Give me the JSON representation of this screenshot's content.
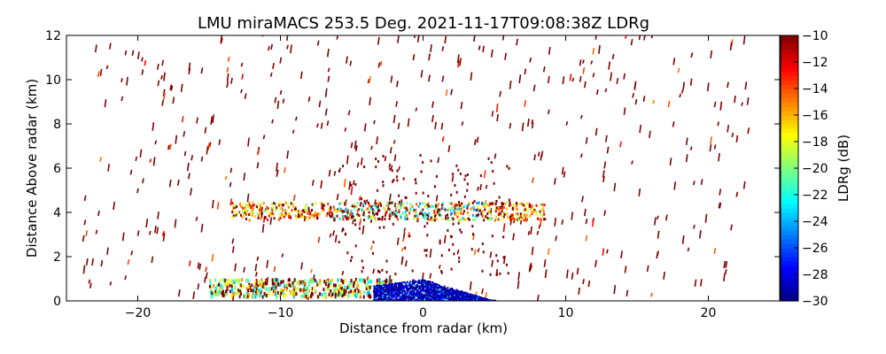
{
  "chart_data": {
    "type": "heatmap",
    "title": "LMU miraMACS 253.5 Deg. 2021-11-17T09:08:38Z  LDRg",
    "xlabel": "Distance from radar (km)",
    "ylabel": "Distance Above radar  (km)",
    "xlim": [
      -25,
      25
    ],
    "ylim": [
      0,
      12
    ],
    "xticks": [
      "−20",
      "−10",
      "0",
      "10",
      "20"
    ],
    "xtick_values": [
      -20,
      -10,
      0,
      10,
      20
    ],
    "yticks": [
      "0",
      "2",
      "4",
      "6",
      "8",
      "10",
      "12"
    ],
    "ytick_values": [
      0,
      2,
      4,
      6,
      8,
      10,
      12
    ],
    "colorbar": {
      "label": "LDRg (dB)",
      "range": [
        -30,
        -10
      ],
      "ticks": [
        "−10",
        "−12",
        "−14",
        "−16",
        "−18",
        "−20",
        "−22",
        "−24",
        "−26",
        "−28",
        "−30"
      ],
      "tick_values": [
        -10,
        -12,
        -14,
        -16,
        -18,
        -20,
        -22,
        -24,
        -26,
        -28,
        -30
      ],
      "colormap": "jet"
    },
    "features": [
      {
        "name": "near-surface low-LDR echo",
        "x_range": [
          -3,
          4.5
        ],
        "y_range": [
          0,
          1.0
        ],
        "value": -29
      },
      {
        "name": "melting layer band",
        "x_range": [
          -13.5,
          8.5
        ],
        "y_center": 4.1,
        "value_range": [
          -24,
          -14
        ]
      },
      {
        "name": "low-level mixed echo",
        "x_range": [
          -15,
          -2
        ],
        "y_range": [
          0.3,
          1.0
        ],
        "value_range": [
          -24,
          -16
        ]
      },
      {
        "name": "sparse high-LDR speckle",
        "x_range": [
          -24,
          22
        ],
        "y_range": [
          0,
          12
        ],
        "value": -10
      }
    ]
  },
  "colors": {
    "axes": "#000000",
    "background": "#ffffff"
  }
}
